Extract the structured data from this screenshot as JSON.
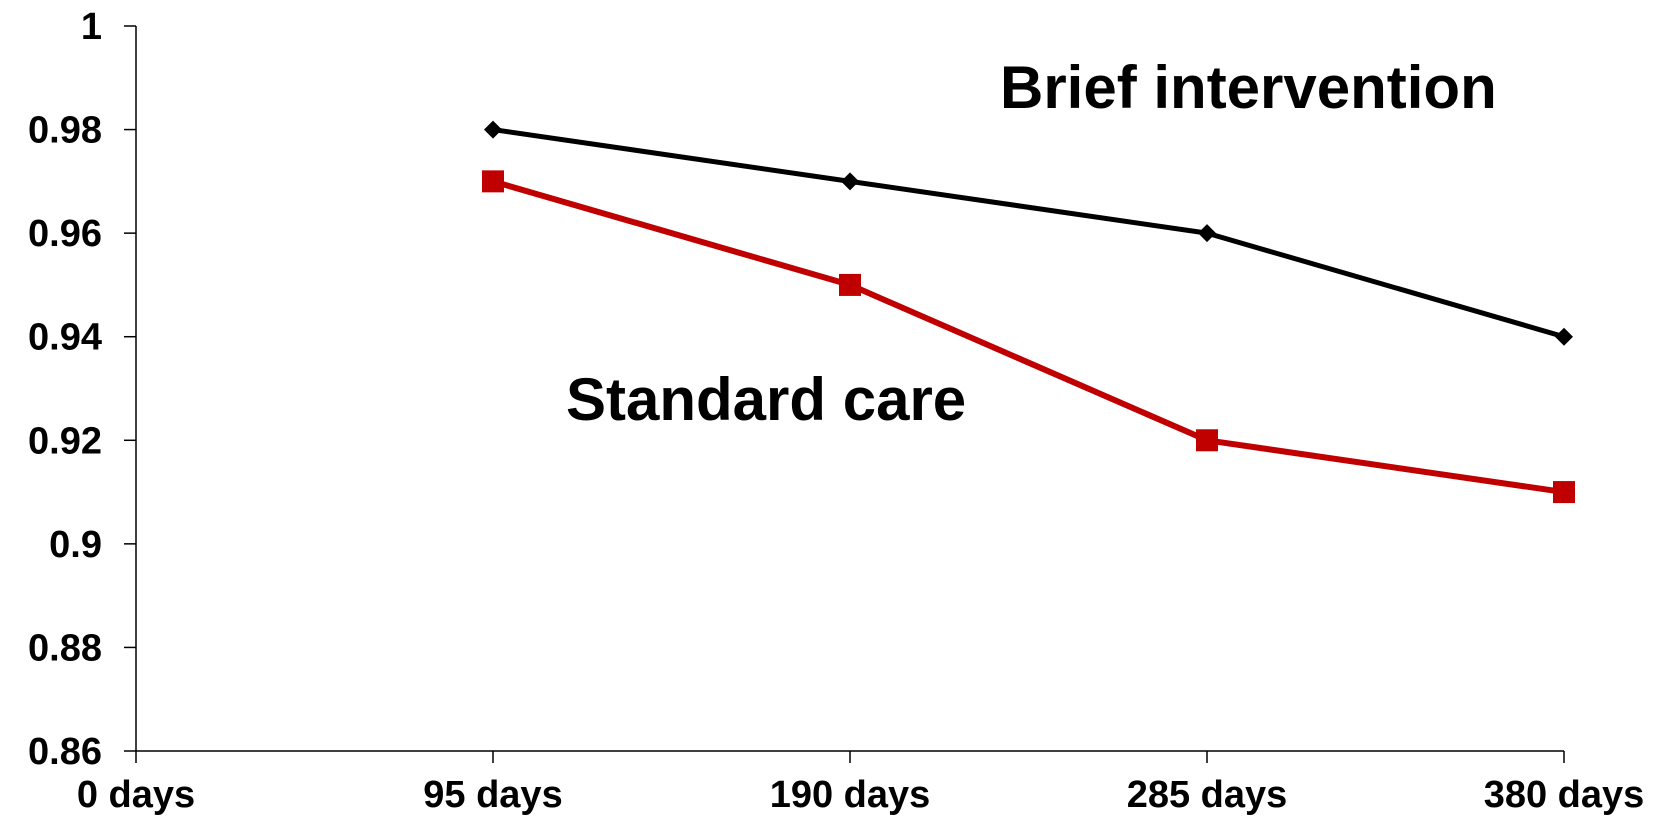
{
  "chart_data": {
    "type": "line",
    "categories": [
      "0 days",
      "95 days",
      "190 days",
      "285 days",
      "380 days"
    ],
    "x": [
      0,
      95,
      190,
      285,
      380
    ],
    "ylim": [
      0.86,
      1
    ],
    "yticks": [
      0.86,
      0.88,
      0.9,
      0.92,
      0.94,
      0.96,
      0.98,
      1
    ],
    "ytick_labels": [
      "0.86",
      "0.88",
      "0.9",
      "0.92",
      "0.94",
      "0.96",
      "0.98",
      "1"
    ],
    "grid": false,
    "series": [
      {
        "name": "Brief intervention",
        "x": [
          95,
          190,
          285,
          380
        ],
        "values": [
          0.98,
          0.97,
          0.96,
          0.94
        ],
        "color": "#000000",
        "marker": "diamond"
      },
      {
        "name": "Standard care",
        "x": [
          95,
          190,
          285,
          380
        ],
        "values": [
          0.97,
          0.95,
          0.92,
          0.91
        ],
        "color": "#c00000",
        "marker": "square"
      }
    ]
  }
}
